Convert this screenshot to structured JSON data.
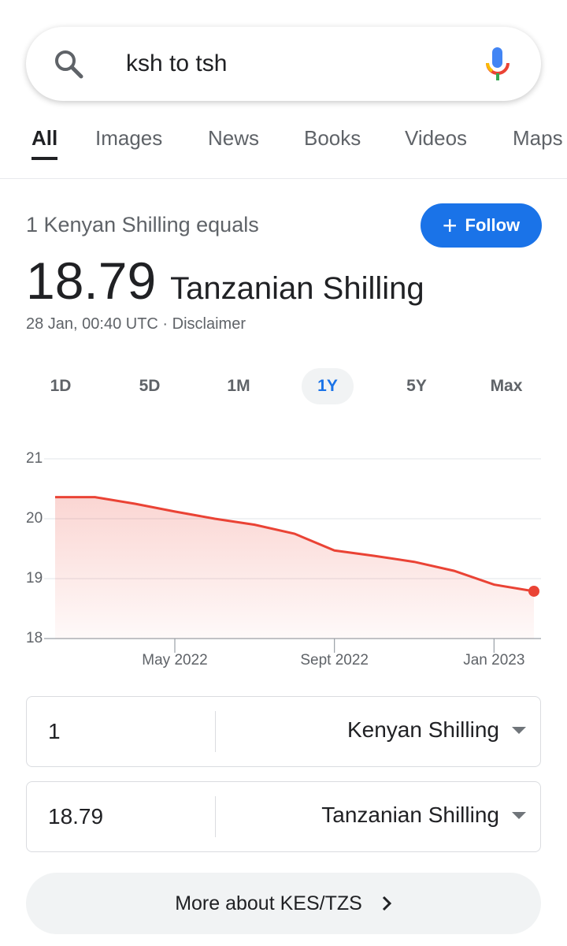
{
  "search": {
    "query": "ksh to tsh"
  },
  "tabs": [
    "All",
    "Images",
    "News",
    "Books",
    "Videos",
    "Maps"
  ],
  "result": {
    "equals_text": "1 Kenyan Shilling equals",
    "follow": "Follow",
    "value": "18.79",
    "unit": "Tanzanian Shilling",
    "timestamp": "28 Jan, 00:40 UTC",
    "disclaimer": "Disclaimer"
  },
  "ranges": [
    "1D",
    "5D",
    "1M",
    "1Y",
    "5Y",
    "Max"
  ],
  "chart_data": {
    "type": "line",
    "categories": [
      null,
      null,
      null,
      "May 2022",
      null,
      null,
      null,
      "Sept 2022",
      null,
      null,
      null,
      "Jan 2023",
      null
    ],
    "values": [
      20.36,
      20.36,
      20.25,
      20.12,
      20.0,
      19.9,
      19.75,
      19.47,
      19.38,
      19.28,
      19.13,
      18.9,
      18.79
    ],
    "color": "#ea4335",
    "ylim": [
      18,
      21
    ],
    "yticks": [
      18,
      19,
      20,
      21
    ],
    "grid": true
  },
  "converter": {
    "rows": [
      {
        "amount": "1",
        "currency": "Kenyan Shilling"
      },
      {
        "amount": "18.79",
        "currency": "Tanzanian Shilling"
      }
    ]
  },
  "more": "More about KES/TZS"
}
